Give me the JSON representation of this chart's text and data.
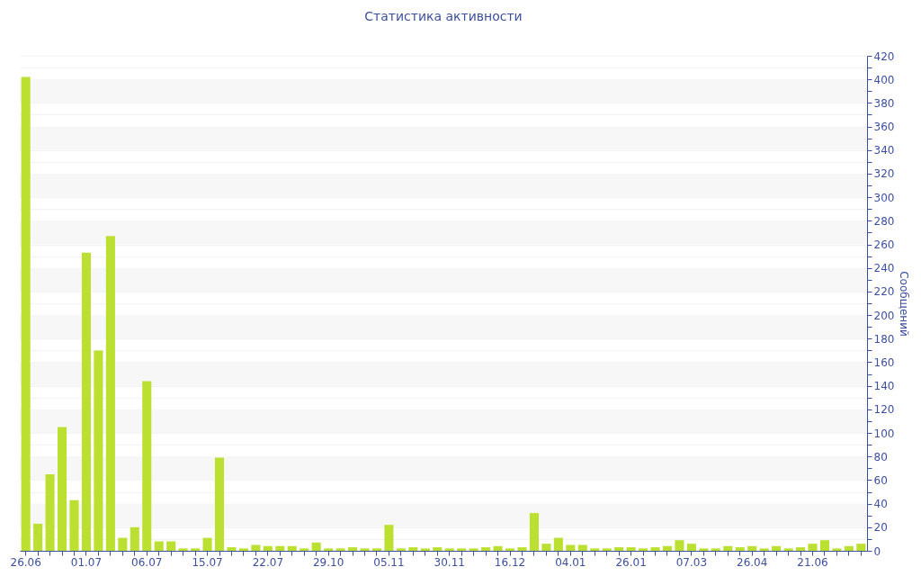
{
  "chart_data": {
    "type": "bar",
    "title": "Статистика активности",
    "ylabel": "Сообщений",
    "categories": [
      "26.06",
      null,
      null,
      null,
      null,
      "01.07",
      null,
      null,
      null,
      null,
      "06.07",
      null,
      null,
      null,
      null,
      "15.07",
      null,
      null,
      null,
      null,
      "22.07",
      null,
      null,
      null,
      null,
      "29.10",
      null,
      null,
      null,
      null,
      "05.11",
      null,
      null,
      null,
      null,
      "30.11",
      null,
      null,
      null,
      null,
      "16.12",
      null,
      null,
      null,
      null,
      "04.01",
      null,
      null,
      null,
      null,
      "26.01",
      null,
      null,
      null,
      null,
      "07.03",
      null,
      null,
      null,
      null,
      "26.04",
      null,
      null,
      null,
      null,
      "21.06",
      null,
      null,
      null,
      null
    ],
    "values": [
      402,
      23,
      65,
      105,
      43,
      253,
      170,
      267,
      11,
      20,
      144,
      8,
      8,
      2,
      2,
      11,
      79,
      3,
      2,
      5,
      4,
      4,
      4,
      2,
      7,
      2,
      2,
      3,
      2,
      2,
      22,
      2,
      3,
      2,
      3,
      2,
      2,
      2,
      3,
      4,
      2,
      3,
      32,
      6,
      11,
      5,
      5,
      2,
      2,
      3,
      3,
      2,
      3,
      4,
      9,
      6,
      2,
      2,
      4,
      3,
      4,
      2,
      4,
      2,
      3,
      6,
      9,
      2,
      4,
      6
    ],
    "color": "#bce032",
    "ylim": [
      0,
      420
    ],
    "yticks": [
      0,
      {
        "value": 10,
        "label": null
      },
      20,
      {
        "value": 30,
        "label": null
      },
      40,
      {
        "value": 50,
        "label": null
      },
      60,
      {
        "value": 70,
        "label": null
      },
      80,
      {
        "value": 90,
        "label": null
      },
      100,
      {
        "value": 110,
        "label": null
      },
      120,
      {
        "value": 130,
        "label": null
      },
      140,
      {
        "value": 150,
        "label": null
      },
      160,
      {
        "value": 170,
        "label": null
      },
      180,
      {
        "value": 190,
        "label": null
      },
      200,
      {
        "value": 210,
        "label": null
      },
      220,
      {
        "value": 230,
        "label": null
      },
      240,
      {
        "value": 250,
        "label": null
      },
      260,
      {
        "value": 270,
        "label": null
      },
      280,
      {
        "value": 290,
        "label": null
      },
      300,
      {
        "value": 310,
        "label": null
      },
      320,
      {
        "value": 330,
        "label": null
      },
      340,
      {
        "value": 350,
        "label": null
      },
      360,
      {
        "value": 370,
        "label": null
      },
      380,
      {
        "value": 390,
        "label": null
      },
      400,
      {
        "value": 410,
        "label": null
      },
      420
    ],
    "grid": "y"
  }
}
